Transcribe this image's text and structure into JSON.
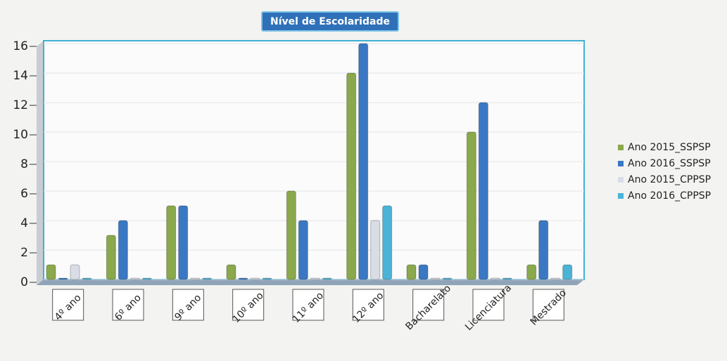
{
  "chart_data": {
    "type": "bar",
    "title": "Nível de Escolaridade",
    "categories": [
      "4º ano",
      "6º ano",
      "9º ano",
      "10º ano",
      "11º ano",
      "12º ano",
      "Bacharelato",
      "Licenciatura",
      "Mestrado"
    ],
    "series": [
      {
        "name": "Ano 2015_SSPSP",
        "color": "#8aa84c",
        "values": [
          1,
          3,
          5,
          1,
          6,
          14,
          1,
          10,
          1
        ]
      },
      {
        "name": "Ano 2016_SSPSP",
        "color": "#3b78c3",
        "values": [
          0,
          4,
          5,
          0,
          4,
          16,
          1,
          12,
          4
        ]
      },
      {
        "name": "Ano 2015_CPPSP",
        "color": "#d9dde6",
        "values": [
          1,
          0,
          0,
          0,
          0,
          4,
          0,
          0,
          0
        ]
      },
      {
        "name": "Ano 2016_CPPSP",
        "color": "#4bb3d6",
        "values": [
          0,
          0,
          0,
          0,
          0,
          5,
          0,
          0,
          1
        ]
      }
    ],
    "ylim": [
      0,
      16
    ],
    "yticks": [
      0,
      2,
      4,
      6,
      8,
      10,
      12,
      14,
      16
    ],
    "grid": true,
    "legend": "right"
  }
}
